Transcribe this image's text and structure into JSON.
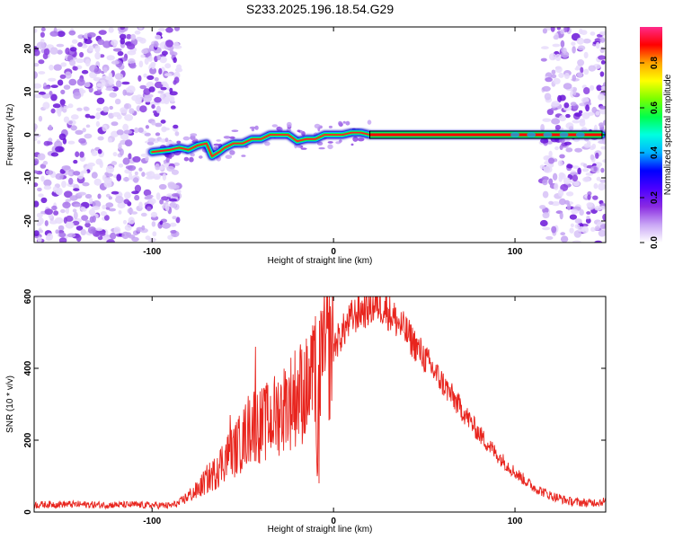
{
  "title": "S233.2025.196.18.54.G29",
  "chart_data": [
    {
      "type": "heatmap",
      "xlabel": "Height of straight line (km)",
      "ylabel": "Frequency (Hz)",
      "xlim": [
        -165,
        150
      ],
      "ylim": [
        -25,
        25
      ],
      "xticks": [
        -100,
        0,
        100
      ],
      "yticks": [
        -20,
        -10,
        0,
        10,
        20
      ],
      "noise_regions": [
        [
          -165,
          -85
        ],
        [
          115,
          150
        ]
      ],
      "ridge": {
        "x": [
          -100,
          -90,
          -85,
          -80,
          -75,
          -70,
          -67,
          -63,
          -60,
          -55,
          -50,
          -45,
          -40,
          -35,
          -30,
          -25,
          -20,
          -15,
          -10,
          -5,
          0,
          5,
          10,
          15,
          20,
          25,
          50,
          100,
          120,
          130,
          148
        ],
        "y": [
          -4,
          -3.5,
          -3,
          -3.5,
          -2.5,
          -2,
          -5,
          -4,
          -3,
          -2,
          -2,
          -1,
          -1,
          0,
          0,
          0,
          -1.5,
          -1,
          -1,
          0,
          0,
          0,
          0.5,
          0.5,
          0,
          0,
          0,
          0,
          0,
          0,
          0
        ]
      },
      "colorbar": {
        "label": "Normalized spectral amplitude",
        "ticks": [
          0.0,
          0.2,
          0.4,
          0.6,
          0.8
        ],
        "colors": [
          "#ffffff",
          "#c9a6f5",
          "#8a2be2",
          "#4b00ff",
          "#0000ff",
          "#00b3ff",
          "#00ffe0",
          "#00ff4c",
          "#7cff00",
          "#ffff00",
          "#ffa500",
          "#ff0000",
          "#ff2a8a"
        ]
      }
    },
    {
      "type": "line",
      "xlabel": "Height of straight line (km)",
      "ylabel": "SNR (10 * v/v)",
      "xlim": [
        -165,
        150
      ],
      "ylim": [
        0,
        600
      ],
      "xticks": [
        -100,
        0,
        100
      ],
      "yticks": [
        0,
        200,
        400,
        600
      ],
      "color": "#e8241d",
      "x": [
        -165,
        -150,
        -130,
        -110,
        -90,
        -85,
        -80,
        -75,
        -70,
        -65,
        -60,
        -55,
        -50,
        -45,
        -40,
        -35,
        -30,
        -25,
        -20,
        -15,
        -10,
        -9,
        -8,
        -5,
        0,
        5,
        10,
        15,
        20,
        25,
        30,
        40,
        50,
        60,
        70,
        80,
        90,
        100,
        110,
        120,
        130,
        140,
        150
      ],
      "y": [
        20,
        22,
        20,
        20,
        18,
        25,
        45,
        60,
        90,
        110,
        150,
        170,
        200,
        250,
        240,
        255,
        280,
        300,
        330,
        340,
        370,
        80,
        400,
        430,
        460,
        500,
        540,
        560,
        570,
        580,
        560,
        500,
        430,
        360,
        290,
        220,
        160,
        110,
        70,
        45,
        30,
        25,
        30
      ],
      "spikes": [
        {
          "x": -64,
          "y": 150
        },
        {
          "x": -57,
          "y": 270
        },
        {
          "x": -50,
          "y": 250
        },
        {
          "x": -43,
          "y": 460
        },
        {
          "x": -37,
          "y": 330
        },
        {
          "x": -26,
          "y": 370
        },
        {
          "x": -18,
          "y": 420
        },
        {
          "x": -12,
          "y": 490
        },
        {
          "x": -10,
          "y": 545
        },
        {
          "x": -8,
          "y": 80
        },
        {
          "x": -6,
          "y": 560
        }
      ]
    }
  ]
}
